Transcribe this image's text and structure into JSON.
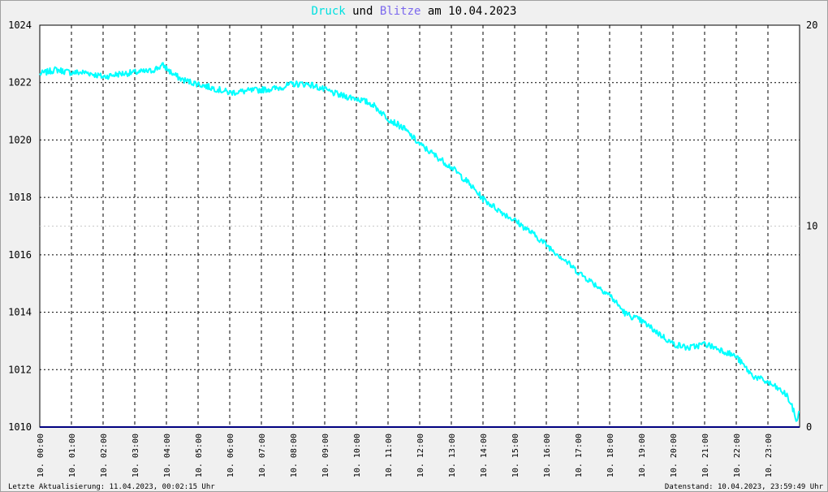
{
  "header": {
    "word_druck": "Druck",
    "word_und": " und ",
    "word_blitze": "Blitze",
    "word_am": " am 10.04.2023"
  },
  "colors": {
    "background": "#f0f0f0",
    "plot_background": "#ffffff",
    "pressure": "#00ffff",
    "lightning": "#000080",
    "blitze_title": "#7b68ee",
    "grid": "#000000"
  },
  "footer": {
    "left": "Letzte Aktualisierung: 11.04.2023, 00:02:15 Uhr",
    "right": "Datenstand: 10.04.2023, 23:59:49 Uhr"
  },
  "chart_data": {
    "type": "line",
    "title": "Druck und Blitze am 10.04.2023",
    "x_tick_labels": [
      "10. 00:00",
      "10. 01:00",
      "10. 02:00",
      "10. 03:00",
      "10. 04:00",
      "10. 05:00",
      "10. 06:00",
      "10. 07:00",
      "10. 08:00",
      "10. 09:00",
      "10. 10:00",
      "10. 11:00",
      "10. 12:00",
      "10. 13:00",
      "10. 14:00",
      "10. 15:00",
      "10. 16:00",
      "10. 17:00",
      "10. 18:00",
      "10. 19:00",
      "10. 20:00",
      "10. 21:00",
      "10. 22:00",
      "10. 23:00"
    ],
    "xlim_hours": [
      0,
      24
    ],
    "y_left": {
      "ticks": [
        1010,
        1012,
        1014,
        1016,
        1018,
        1020,
        1022,
        1024
      ],
      "lim": [
        1010,
        1024
      ]
    },
    "y_right": {
      "ticks": [
        0,
        10,
        20
      ],
      "lim": [
        0,
        20
      ]
    },
    "grid": true,
    "series": [
      {
        "name": "Druck",
        "axis": "left",
        "color": "#00ffff",
        "x_hours": [
          0,
          0.5,
          1,
          1.5,
          2,
          2.5,
          3,
          3.5,
          3.9,
          4.2,
          4.5,
          5,
          5.5,
          6,
          6.5,
          7,
          7.5,
          8,
          8.5,
          9,
          9.5,
          10,
          10.5,
          11,
          11.5,
          12,
          12.5,
          13,
          13.5,
          14,
          14.5,
          15,
          15.5,
          16,
          16.5,
          17,
          17.5,
          18,
          18.5,
          19,
          19.5,
          20,
          20.5,
          21,
          21.5,
          22,
          22.5,
          23,
          23.3,
          23.6,
          23.8,
          23.9,
          24
        ],
        "values": [
          1022.3,
          1022.45,
          1022.35,
          1022.35,
          1022.2,
          1022.3,
          1022.35,
          1022.4,
          1022.6,
          1022.3,
          1022.1,
          1021.95,
          1021.8,
          1021.65,
          1021.7,
          1021.75,
          1021.8,
          1021.95,
          1021.95,
          1021.75,
          1021.55,
          1021.45,
          1021.25,
          1020.75,
          1020.4,
          1019.85,
          1019.45,
          1019.05,
          1018.55,
          1017.95,
          1017.55,
          1017.2,
          1016.8,
          1016.35,
          1015.9,
          1015.4,
          1015.0,
          1014.6,
          1013.95,
          1013.7,
          1013.3,
          1012.9,
          1012.75,
          1012.9,
          1012.7,
          1012.45,
          1011.8,
          1011.55,
          1011.35,
          1011.1,
          1010.6,
          1010.2,
          1010.55
        ]
      },
      {
        "name": "Blitze",
        "axis": "right",
        "color": "#000080",
        "x_hours": [
          0,
          24
        ],
        "values": [
          0,
          0
        ]
      }
    ]
  }
}
